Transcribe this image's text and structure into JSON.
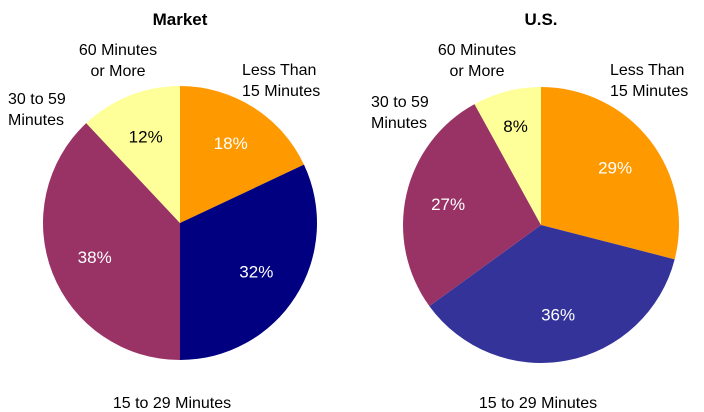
{
  "chart_data": [
    {
      "type": "pie",
      "title": "Market",
      "slices": [
        {
          "label_lines": [
            "Less Than",
            "15 Minutes"
          ],
          "value": 18,
          "value_label": "18%",
          "color": "#FF9900",
          "text_color": "#FFFFFF"
        },
        {
          "label_lines": [
            "15 to 29 Minutes"
          ],
          "value": 32,
          "value_label": "32%",
          "color": "#000080",
          "text_color": "#FFFFFF"
        },
        {
          "label_lines": [
            "30 to 59",
            "Minutes"
          ],
          "value": 38,
          "value_label": "38%",
          "color": "#993366",
          "text_color": "#FFFFFF"
        },
        {
          "label_lines": [
            "60 Minutes",
            "or More"
          ],
          "value": 12,
          "value_label": "12%",
          "color": "#FFFF99",
          "text_color": "#000000"
        }
      ]
    },
    {
      "type": "pie",
      "title": "U.S.",
      "slices": [
        {
          "label_lines": [
            "Less Than",
            "15 Minutes"
          ],
          "value": 29,
          "value_label": "29%",
          "color": "#FF9900",
          "text_color": "#FFFFFF"
        },
        {
          "label_lines": [
            "15 to 29 Minutes"
          ],
          "value": 36,
          "value_label": "36%",
          "color": "#333399",
          "text_color": "#FFFFFF"
        },
        {
          "label_lines": [
            "30 to 59",
            "Minutes"
          ],
          "value": 27,
          "value_label": "27%",
          "color": "#993366",
          "text_color": "#FFFFFF"
        },
        {
          "label_lines": [
            "60 Minutes",
            "or More"
          ],
          "value": 8,
          "value_label": "8%",
          "color": "#FFFF99",
          "text_color": "#000000"
        }
      ]
    }
  ]
}
